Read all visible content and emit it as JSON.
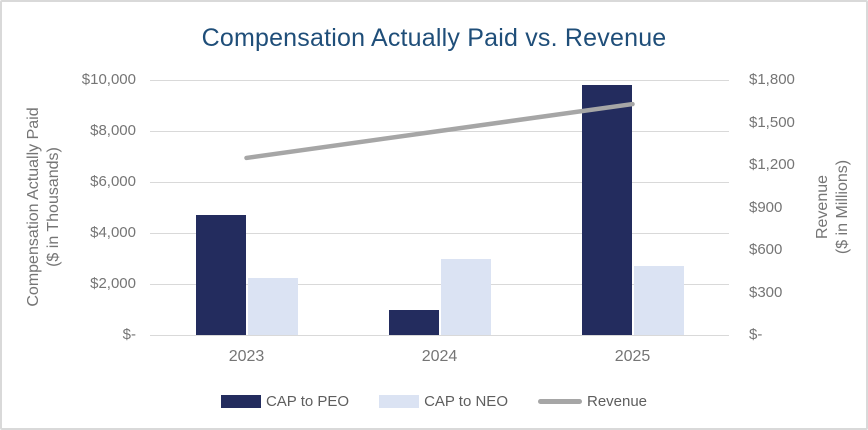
{
  "title": "Compensation Actually Paid vs. Revenue",
  "colors": {
    "title": "#1F4E79",
    "cap_to_peo_bar": "#232C5E",
    "cap_to_neo_bar": "#DBE3F3",
    "revenue_line": "#A6A6A6",
    "gridline": "#D9D9D9",
    "axis_text": "#757575",
    "legend_text": "#5E5E5E",
    "card_border": "#D9D9D9",
    "background": "#FFFFFF"
  },
  "chart_data": {
    "type": "bar",
    "subtype": "grouped-bar-with-line-combo",
    "title": "Compensation Actually Paid vs. Revenue",
    "categories": [
      "2023",
      "2024",
      "2025"
    ],
    "series": [
      {
        "name": "CAP to PEO",
        "type": "bar",
        "axis": "left",
        "color": "#232C5E",
        "values": [
          4700,
          1000,
          9800
        ]
      },
      {
        "name": "CAP to NEO",
        "type": "bar",
        "axis": "left",
        "color": "#DBE3F3",
        "values": [
          2250,
          3000,
          2700
        ]
      },
      {
        "name": "Revenue",
        "type": "line",
        "axis": "right",
        "color": "#A6A6A6",
        "values": [
          1250,
          1440,
          1630
        ]
      }
    ],
    "left_axis": {
      "title_line1": "Compensation Actually Paid",
      "title_line2": "($ in Thousands)",
      "min": 0,
      "max": 10000,
      "step": 2000,
      "tick_labels": [
        "$-",
        "$2,000",
        "$4,000",
        "$6,000",
        "$8,000",
        "$10,000"
      ]
    },
    "right_axis": {
      "title_line1": "Revenue",
      "title_line2": "($ in Millions)",
      "min": 0,
      "max": 1800,
      "step": 300,
      "tick_labels": [
        "$-",
        "$300",
        "$600",
        "$900",
        "$1,200",
        "$1,500",
        "$1,800"
      ]
    },
    "grid": true,
    "legend": {
      "position": "bottom",
      "items": [
        "CAP to PEO",
        "CAP to NEO",
        "Revenue"
      ]
    }
  }
}
